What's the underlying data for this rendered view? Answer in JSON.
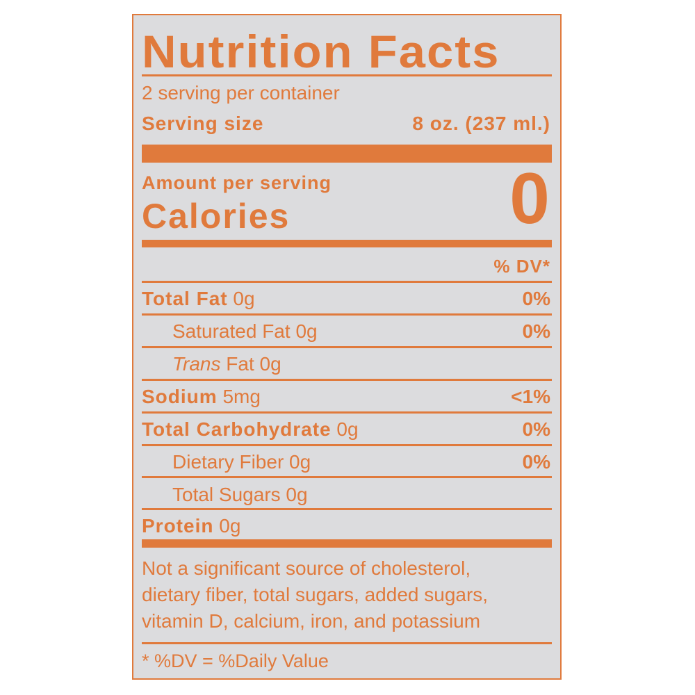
{
  "title": "Nutrition Facts",
  "servings_per_container": "2 serving per container",
  "serving_size_label": "Serving size",
  "serving_size_value": "8 oz. (237 ml.)",
  "amount_per_serving": "Amount per serving",
  "calories_label": "Calories",
  "calories_value": "0",
  "dv_header": "% DV*",
  "nutrients": [
    {
      "name": "Total Fat",
      "amount": "0g",
      "dv": "0%"
    },
    {
      "name": "Saturated Fat",
      "amount": "0g",
      "dv": "0%"
    },
    {
      "name": "Trans",
      "name_rest": "Fat",
      "amount": "0g",
      "dv": ""
    },
    {
      "name": "Sodium",
      "amount": "5mg",
      "dv": "<1%"
    },
    {
      "name": "Total Carbohydrate",
      "amount": "0g",
      "dv": "0%"
    },
    {
      "name": "Dietary Fiber",
      "amount": "0g",
      "dv": "0%"
    },
    {
      "name": "Total Sugars",
      "amount": "0g",
      "dv": ""
    },
    {
      "name": "Protein",
      "amount": "0g",
      "dv": ""
    }
  ],
  "footnote_lines": [
    "Not a significant source of cholesterol,",
    "dietary fiber, total sugars, added sugars,",
    "vitamin D, calcium, iron, and potassium"
  ],
  "dv_note": "* %DV = %Daily Value",
  "colors": {
    "ink": "#e07a3c",
    "background": "#dcdcde"
  }
}
